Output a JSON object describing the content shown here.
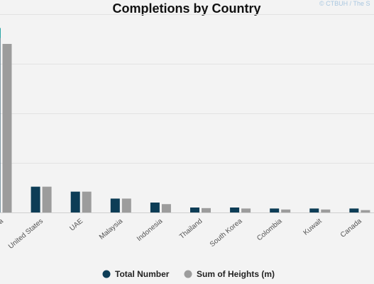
{
  "chart_data": {
    "type": "bar",
    "title": "Completions by Country",
    "credit": "© CTBUH / The S",
    "categories": [
      "a",
      "United States",
      "UAE",
      "Malaysia",
      "Indonesia",
      "Thailand",
      "South Korea",
      "Colombia",
      "Kuwait",
      "Canada"
    ],
    "series": [
      {
        "name": "Total Number",
        "color": "#0d3d56",
        "values": [
          93,
          13,
          10.5,
          7,
          5,
          2.5,
          2.5,
          2,
          2,
          2
        ]
      },
      {
        "name": "Sum of Heights (m)",
        "color": "#9c9c9c",
        "values": [
          85,
          13,
          10.5,
          7,
          4.2,
          2.2,
          2,
          1.5,
          1.5,
          1.2
        ]
      }
    ],
    "ylim": [
      0,
      100
    ],
    "grid": true,
    "legend_position": "bottom"
  }
}
